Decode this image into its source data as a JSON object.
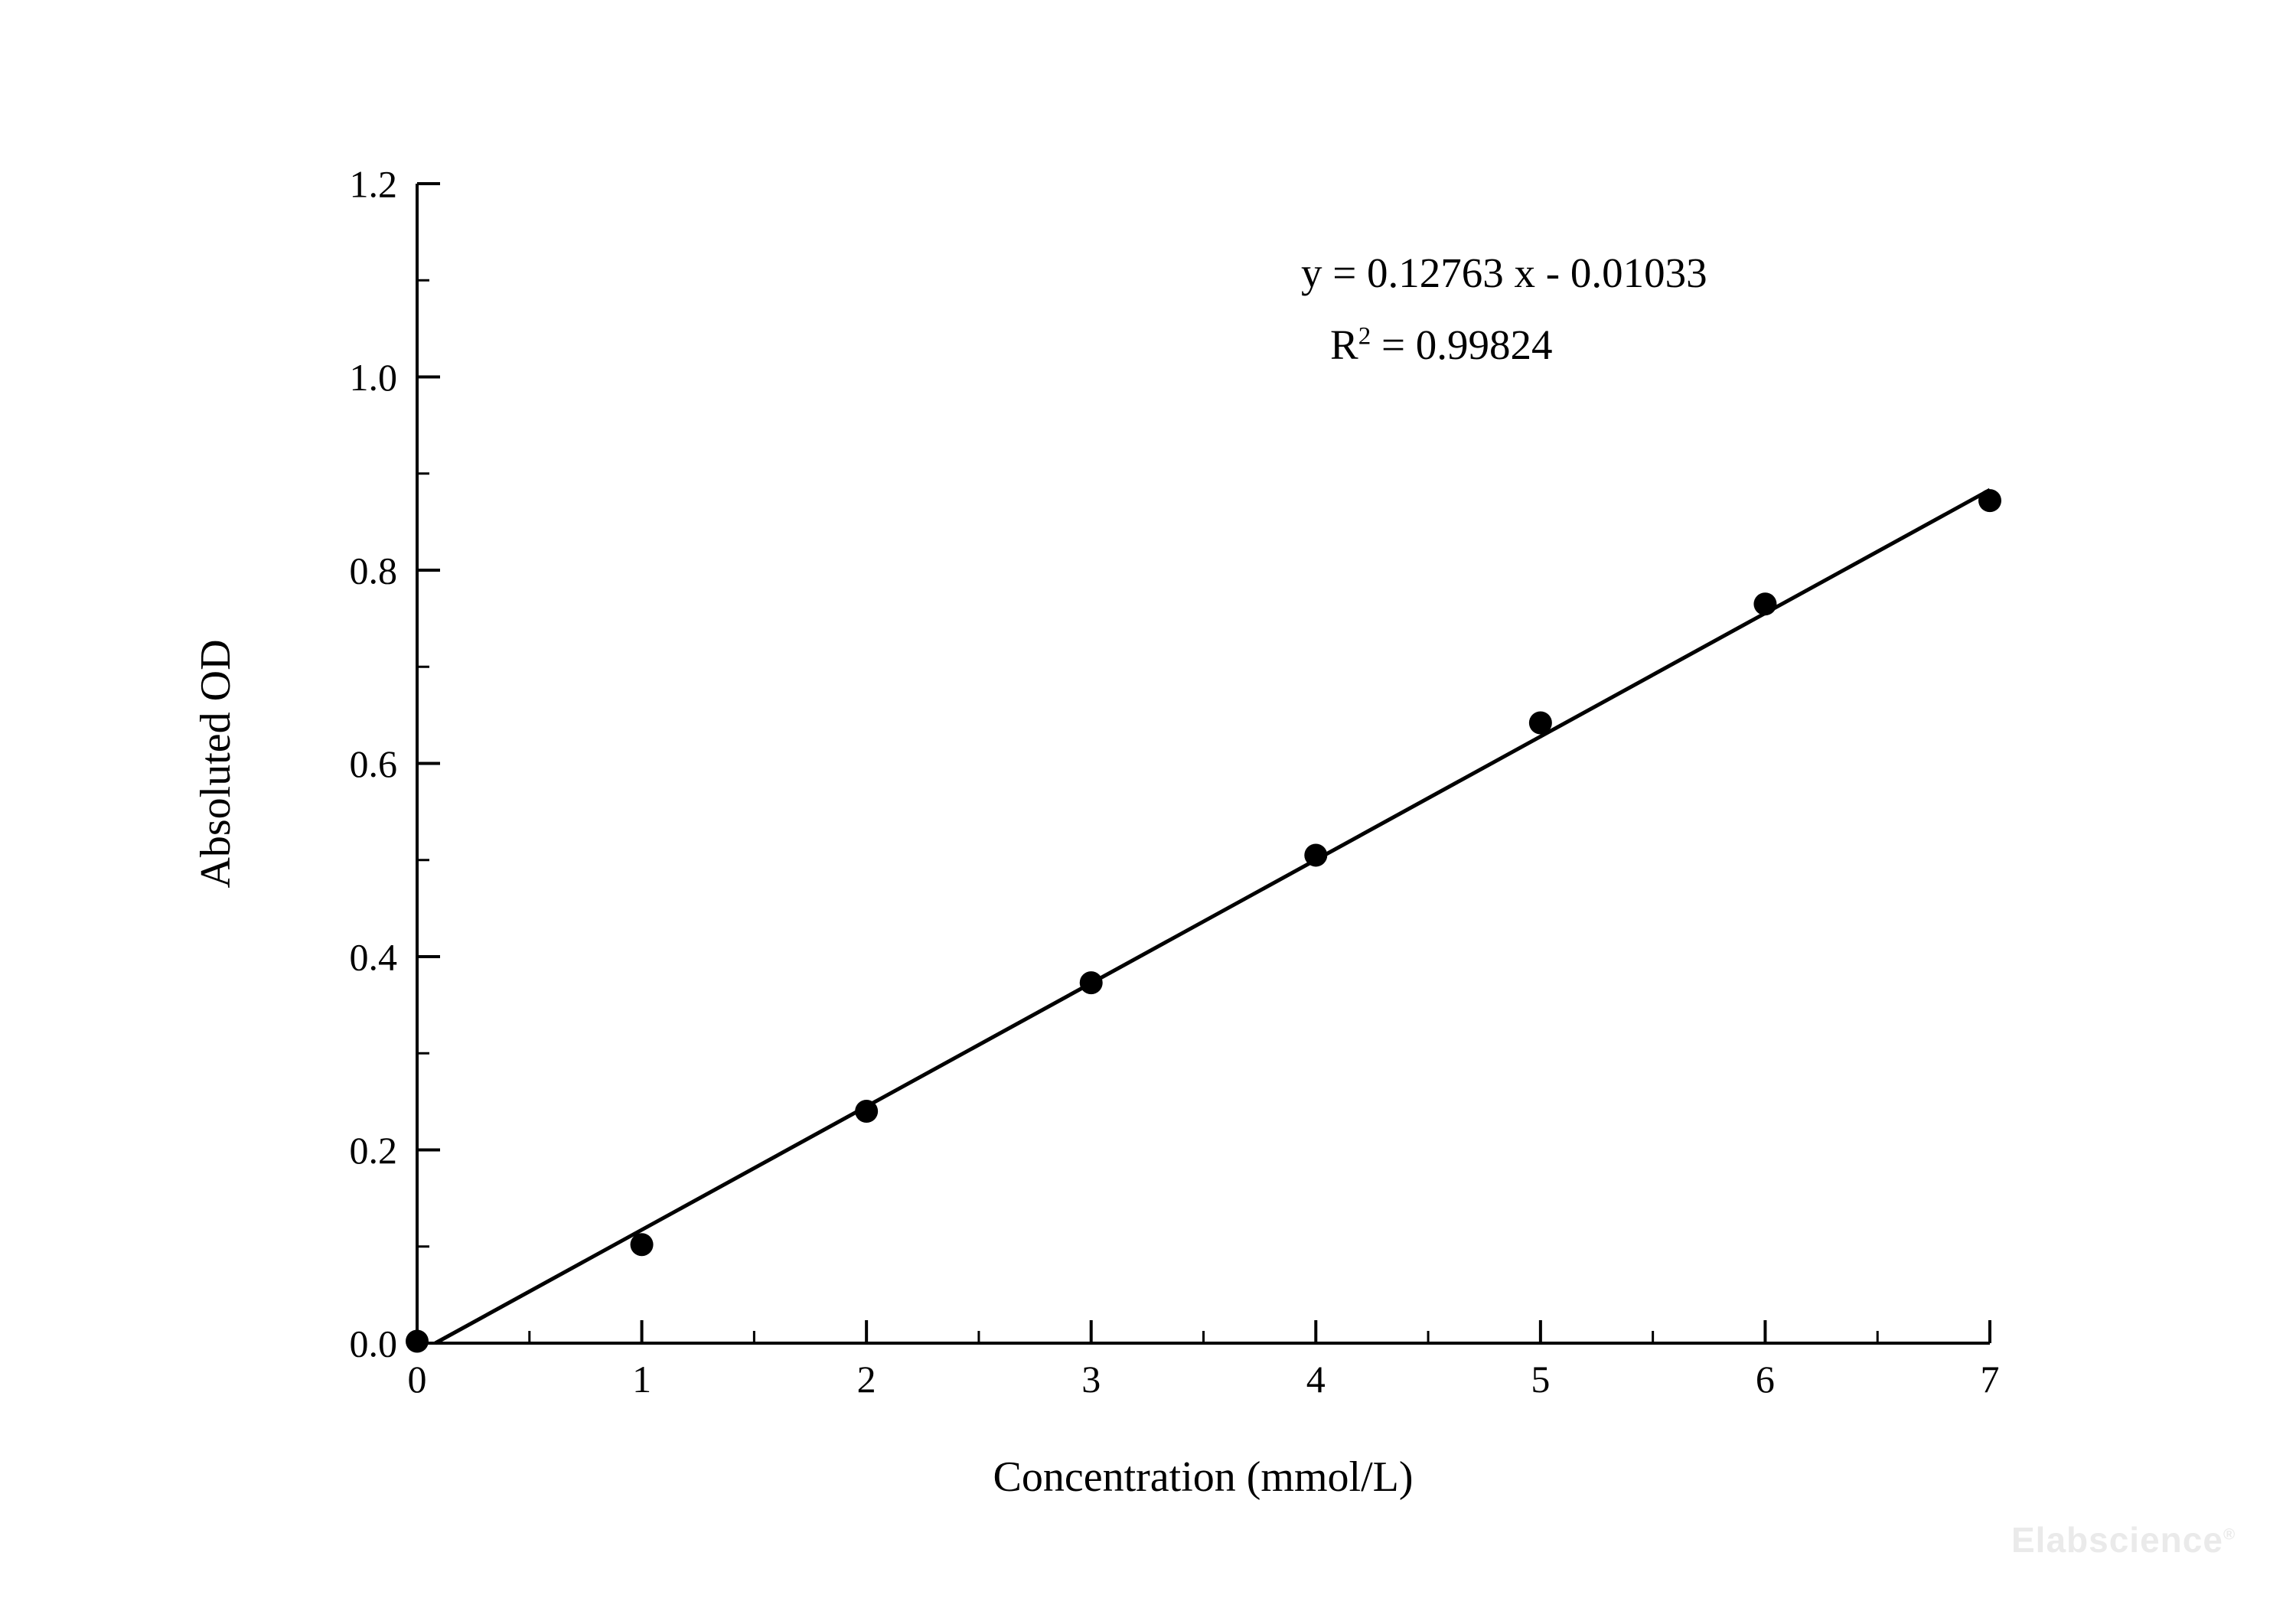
{
  "chart_data": {
    "type": "scatter",
    "title": "",
    "xlabel": "Concentration (mmol/L)",
    "ylabel": "Absoluted OD",
    "xlim": [
      0,
      7
    ],
    "ylim": [
      0.0,
      1.2
    ],
    "x_tick_values": [
      0,
      1,
      2,
      3,
      4,
      5,
      6,
      7
    ],
    "x_tick_labels": [
      "0",
      "1",
      "2",
      "3",
      "4",
      "5",
      "6",
      "7"
    ],
    "x_minor_step": 0.5,
    "y_tick_values": [
      0.0,
      0.2,
      0.4,
      0.6,
      0.8,
      1.0,
      1.2
    ],
    "y_tick_labels": [
      "0.0",
      "0.2",
      "0.4",
      "0.6",
      "0.8",
      "1.0",
      "1.2"
    ],
    "y_minor_step": 0.1,
    "grid": false,
    "legend": false,
    "marker_color": "#000000",
    "line_color": "#000000",
    "points": {
      "x": [
        0,
        1,
        2,
        3,
        4,
        5,
        6,
        7
      ],
      "y": [
        0.002,
        0.102,
        0.24,
        0.373,
        0.505,
        0.642,
        0.765,
        0.872
      ]
    },
    "fit_line": {
      "slope": 0.12763,
      "intercept": -0.01033
    },
    "annotation": {
      "equation": "y = 0.12763 x - 0.01033",
      "r2_base": "R",
      "r2_sup": "2",
      "r2_rest": " = 0.99824"
    }
  },
  "watermark": {
    "text": "Elabscience",
    "mark": "®"
  }
}
